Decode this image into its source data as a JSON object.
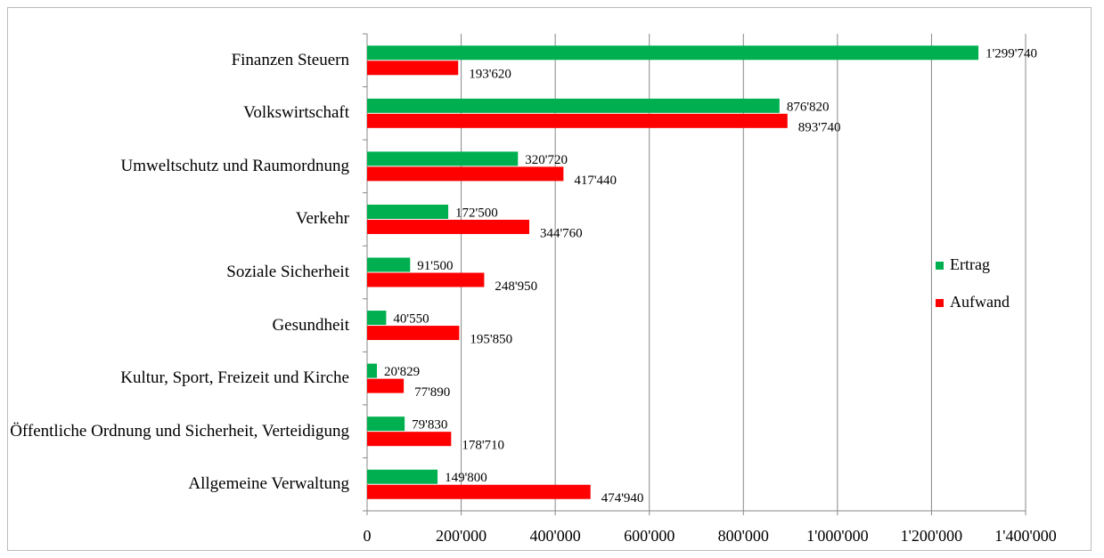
{
  "chart_data": {
    "type": "bar",
    "orientation": "horizontal",
    "categories": [
      "Finanzen Steuern",
      "Volkswirtschaft",
      "Umweltschutz und Raumordnung",
      "Verkehr",
      "Soziale Sicherheit",
      "Gesundheit",
      "Kultur, Sport, Freizeit und Kirche",
      "Öffentliche Ordnung und Sicherheit, Verteidigung",
      "Allgemeine Verwaltung"
    ],
    "series": [
      {
        "name": "Ertrag",
        "color": "#00b050",
        "values": [
          1299740,
          876820,
          320720,
          172500,
          91500,
          40550,
          20829,
          79830,
          149800
        ],
        "value_labels": [
          "1'299'740",
          "876'820",
          "320'720",
          "172'500",
          "91'500",
          "40'550",
          "20'829",
          "79'830",
          "149'800"
        ]
      },
      {
        "name": "Aufwand",
        "color": "#ff0000",
        "values": [
          193620,
          893740,
          417440,
          344760,
          248950,
          195850,
          77890,
          178710,
          474940
        ],
        "value_labels": [
          "193'620",
          "893'740",
          "417'440",
          "344'760",
          "248'950",
          "195'850",
          "77'890",
          "178'710",
          "474'940"
        ]
      }
    ],
    "xlim": [
      0,
      1400000
    ],
    "xticks": [
      0,
      {
        "value": 200000,
        "label": "200'000"
      },
      {
        "value": 400000,
        "label": "400'000"
      },
      {
        "value": 600000,
        "label": "600'000"
      },
      {
        "value": 800000,
        "label": "800'000"
      },
      {
        "value": 1000000,
        "label": "1'000'000"
      },
      {
        "value": 1200000,
        "label": "1'200'000"
      },
      {
        "value": 1400000,
        "label": "1'400'000"
      }
    ],
    "grid": true,
    "legend": "right"
  }
}
